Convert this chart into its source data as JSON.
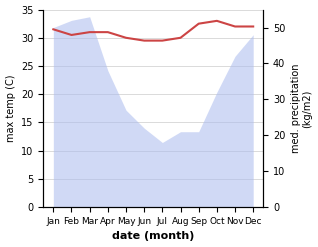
{
  "months": [
    "Jan",
    "Feb",
    "Mar",
    "Apr",
    "May",
    "Jun",
    "Jul",
    "Aug",
    "Sep",
    "Oct",
    "Nov",
    "Dec"
  ],
  "temperature": [
    31.5,
    30.5,
    31.0,
    31.0,
    30.0,
    29.5,
    29.5,
    30.0,
    32.5,
    33.0,
    32.0,
    32.0
  ],
  "precipitation": [
    50,
    52,
    53,
    38,
    27,
    22,
    18,
    21,
    21,
    32,
    42,
    48
  ],
  "temp_color": "#cc4444",
  "precip_color": "#aabbee",
  "background_color": "#ffffff",
  "xlabel": "date (month)",
  "ylabel_left": "max temp (C)",
  "ylabel_right": "med. precipitation\n(kg/m2)",
  "ylim_left": [
    0,
    35
  ],
  "ylim_right": [
    0,
    55
  ],
  "yticks_left": [
    0,
    5,
    10,
    15,
    20,
    25,
    30,
    35
  ],
  "yticks_right": [
    0,
    10,
    20,
    30,
    40,
    50
  ],
  "grid_color": "#cccccc",
  "temp_linewidth": 1.5,
  "precip_alpha": 0.55
}
